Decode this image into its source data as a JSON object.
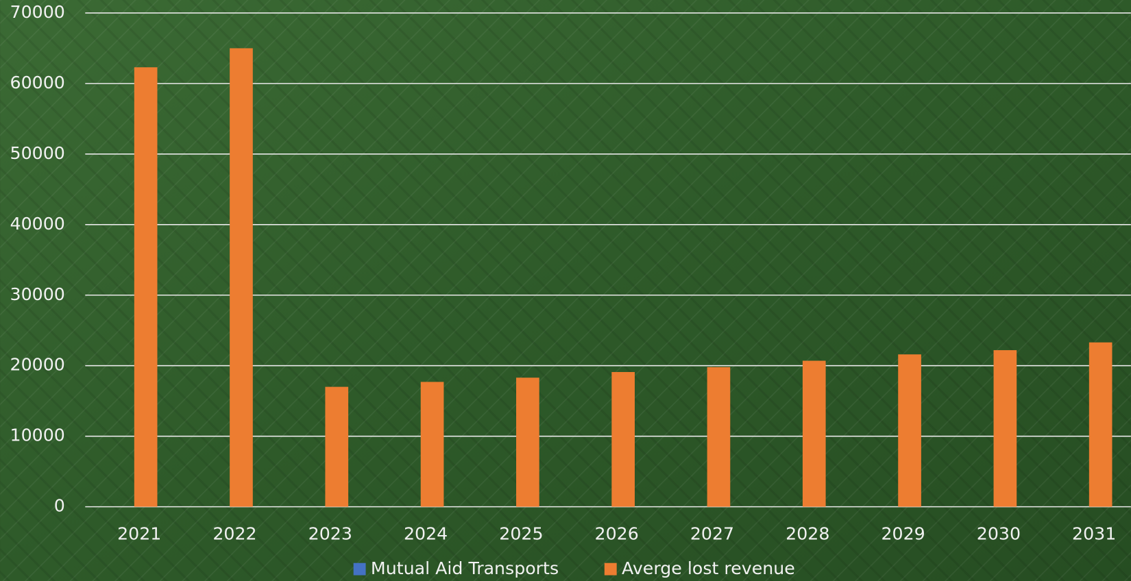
{
  "chart_data": {
    "type": "bar",
    "categories": [
      "2021",
      "2022",
      "2023",
      "2024",
      "2025",
      "2026",
      "2027",
      "2028",
      "2029",
      "2030",
      "2031"
    ],
    "series": [
      {
        "name": "Mutual Aid Transports",
        "color": "#4472c4",
        "values": [
          null,
          null,
          null,
          null,
          null,
          null,
          null,
          null,
          null,
          null,
          null
        ]
      },
      {
        "name": "Averge lost revenue",
        "color": "#ed7d31",
        "values": [
          62300,
          65000,
          17000,
          17700,
          18300,
          19100,
          19800,
          20700,
          21600,
          22200,
          23300
        ]
      }
    ],
    "ylim": [
      0,
      70000
    ],
    "yticks": [
      0,
      10000,
      20000,
      30000,
      40000,
      50000,
      60000,
      70000
    ],
    "grid": true,
    "legend": "bottom"
  }
}
